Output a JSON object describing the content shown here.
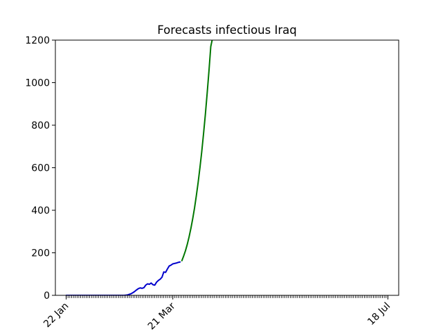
{
  "chart_data": {
    "type": "line",
    "title": "Forecasts infectious Iraq",
    "xlabel": "",
    "ylabel": "",
    "ylim": [
      0,
      1200
    ],
    "xlim": [
      "2020-01-16",
      "2020-07-24"
    ],
    "x_axis_type": "date",
    "x_tick_labels": [
      {
        "date": "2020-01-22",
        "label": "22 Jan"
      },
      {
        "date": "2020-03-21",
        "label": "21 Mar"
      },
      {
        "date": "2020-07-18",
        "label": "18 Jul"
      }
    ],
    "x_minor_ticks": "daily",
    "y_ticks": [
      0,
      200,
      400,
      600,
      800,
      1000,
      1200
    ],
    "grid": false,
    "legend": "none",
    "series": [
      {
        "color": "#0000cc",
        "x": [
          "2020-01-22",
          "2020-01-23",
          "2020-01-24",
          "2020-01-25",
          "2020-01-26",
          "2020-01-27",
          "2020-01-28",
          "2020-01-29",
          "2020-01-30",
          "2020-01-31",
          "2020-02-01",
          "2020-02-02",
          "2020-02-03",
          "2020-02-04",
          "2020-02-05",
          "2020-02-06",
          "2020-02-07",
          "2020-02-08",
          "2020-02-09",
          "2020-02-10",
          "2020-02-11",
          "2020-02-12",
          "2020-02-13",
          "2020-02-14",
          "2020-02-15",
          "2020-02-16",
          "2020-02-17",
          "2020-02-18",
          "2020-02-19",
          "2020-02-20",
          "2020-02-21",
          "2020-02-22",
          "2020-02-23",
          "2020-02-24",
          "2020-02-25",
          "2020-02-26",
          "2020-02-27",
          "2020-02-28",
          "2020-02-29",
          "2020-03-01",
          "2020-03-02",
          "2020-03-03",
          "2020-03-04",
          "2020-03-05",
          "2020-03-06",
          "2020-03-07",
          "2020-03-08",
          "2020-03-09",
          "2020-03-10",
          "2020-03-11",
          "2020-03-12",
          "2020-03-13",
          "2020-03-14",
          "2020-03-15",
          "2020-03-16",
          "2020-03-17",
          "2020-03-18",
          "2020-03-19",
          "2020-03-20",
          "2020-03-21",
          "2020-03-22",
          "2020-03-23",
          "2020-03-24",
          "2020-03-25"
        ],
        "values": [
          0,
          0,
          0,
          0,
          0,
          0,
          0,
          0,
          0,
          0,
          0,
          0,
          0,
          0,
          0,
          0,
          0,
          0,
          0,
          0,
          0,
          0,
          0,
          0,
          0,
          0,
          0,
          0,
          0,
          0,
          0,
          0,
          0,
          1,
          2,
          5,
          8,
          13,
          19,
          26,
          32,
          35,
          33,
          36,
          48,
          54,
          52,
          58,
          50,
          48,
          62,
          70,
          76,
          85,
          110,
          108,
          124,
          138,
          142,
          148,
          150,
          152,
          155,
          157
        ]
      },
      {
        "color": "#007700",
        "x": [
          "2020-03-26",
          "2020-03-27",
          "2020-03-28",
          "2020-03-29",
          "2020-03-30",
          "2020-03-31",
          "2020-04-01",
          "2020-04-02",
          "2020-04-03",
          "2020-04-04",
          "2020-04-05",
          "2020-04-06",
          "2020-04-07",
          "2020-04-08",
          "2020-04-09",
          "2020-04-10",
          "2020-04-11",
          "2020-04-12"
        ],
        "values": [
          163,
          185,
          210,
          240,
          275,
          315,
          360,
          410,
          468,
          530,
          600,
          675,
          760,
          850,
          950,
          1055,
          1170,
          1210
        ]
      }
    ]
  }
}
